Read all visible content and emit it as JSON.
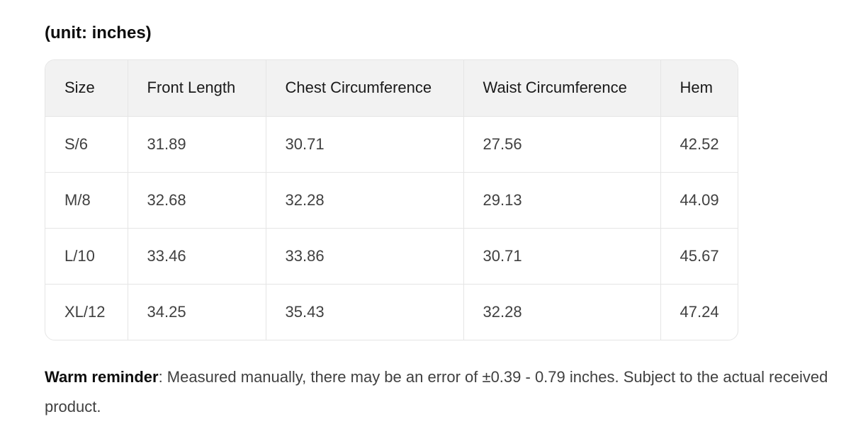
{
  "heading": "(unit: inches)",
  "table": {
    "headers": [
      "Size",
      "Front Length",
      "Chest Circumference",
      "Waist Circumference",
      "Hem"
    ],
    "rows": [
      [
        "S/6",
        "31.89",
        "30.71",
        "27.56",
        "42.52"
      ],
      [
        "M/8",
        "32.68",
        "32.28",
        "29.13",
        "44.09"
      ],
      [
        "L/10",
        "33.46",
        "33.86",
        "30.71",
        "45.67"
      ],
      [
        "XL/12",
        "34.25",
        "35.43",
        "32.28",
        "47.24"
      ]
    ]
  },
  "reminder": {
    "label": "Warm reminder",
    "text": ": Measured manually, there may be an error of ±0.39 - 0.79 inches. Subject to the actual received product."
  }
}
